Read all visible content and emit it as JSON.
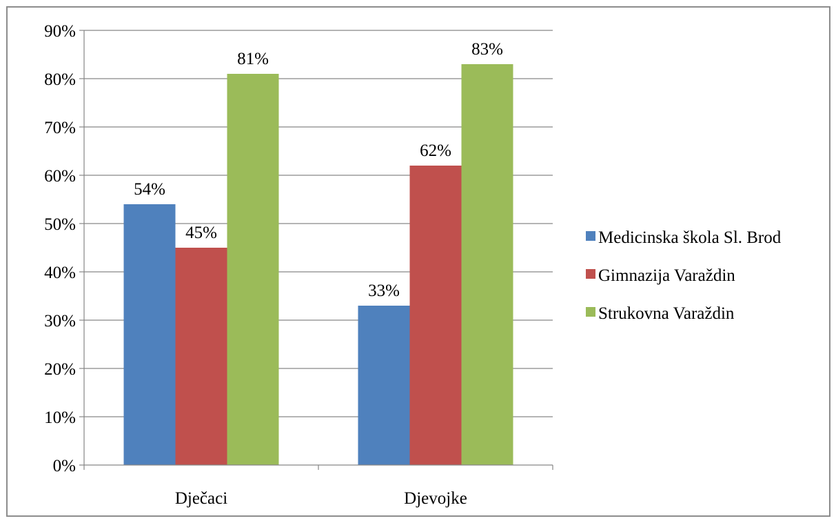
{
  "chart_data": {
    "type": "bar",
    "title": "",
    "xlabel": "",
    "ylabel": "",
    "categories": [
      "Dječaci",
      "Djevojke"
    ],
    "series": [
      {
        "name": "Medicinska škola Sl. Brod",
        "color": "#4f81bd",
        "values": [
          54,
          33
        ],
        "labels": [
          "54%",
          "33%"
        ]
      },
      {
        "name": "Gimnazija Varaždin",
        "color": "#c0504d",
        "values": [
          45,
          62
        ],
        "labels": [
          "45%",
          "62%"
        ]
      },
      {
        "name": "Strukovna Varaždin",
        "color": "#9bbb59",
        "values": [
          81,
          83
        ],
        "labels": [
          "81%",
          "83%"
        ]
      }
    ],
    "ylim": [
      0,
      90
    ],
    "yticks": [
      0,
      10,
      20,
      30,
      40,
      50,
      60,
      70,
      80,
      90
    ],
    "ytick_labels": [
      "0%",
      "10%",
      "20%",
      "30%",
      "40%",
      "50%",
      "60%",
      "70%",
      "80%",
      "90%"
    ],
    "grid": true,
    "legend_position": "right"
  }
}
